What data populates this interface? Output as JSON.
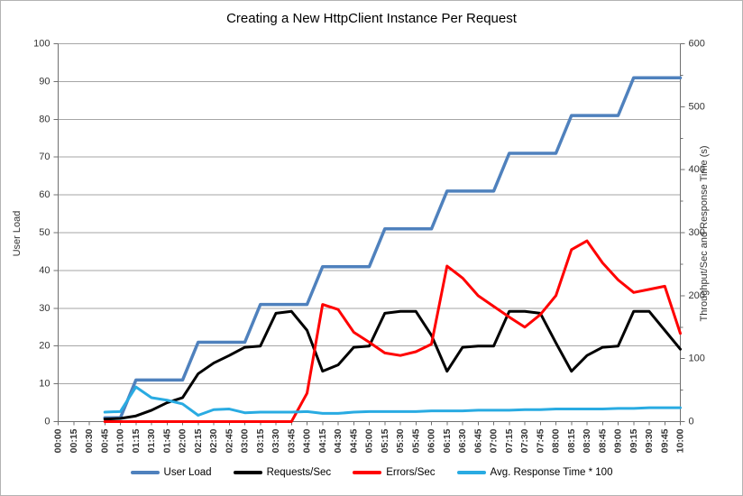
{
  "chart_data": {
    "type": "line",
    "title": "Creating a New HttpClient Instance Per Request",
    "grid": "horizontal",
    "legend_position": "bottom",
    "x_labels": [
      "00:00",
      "00:15",
      "00:30",
      "00:45",
      "01:00",
      "01:15",
      "01:30",
      "01:45",
      "02:00",
      "02:15",
      "02:30",
      "02:45",
      "03:00",
      "03:15",
      "03:30",
      "03:45",
      "04:00",
      "04:15",
      "04:30",
      "04:45",
      "05:00",
      "05:15",
      "05:30",
      "05:45",
      "06:00",
      "06:15",
      "06:30",
      "06:45",
      "07:00",
      "07:15",
      "07:30",
      "07:45",
      "08:00",
      "08:15",
      "08:30",
      "08:45",
      "09:00",
      "09:15",
      "09:30",
      "09:45",
      "10:00"
    ],
    "left_axis": {
      "title": "User Load",
      "min": 0,
      "max": 100,
      "ticks": [
        0,
        10,
        20,
        30,
        40,
        50,
        60,
        70,
        80,
        90,
        100
      ]
    },
    "right_axis": {
      "title": "Throughput/Sec and Response Time (s)",
      "min": 0,
      "max": 600,
      "ticks": [
        0,
        100,
        200,
        300,
        400,
        500,
        600
      ],
      "minor_tick_step": 50
    },
    "series": [
      {
        "name": "User Load",
        "axis": "left",
        "color": "#4F81BD",
        "values": [
          null,
          null,
          null,
          1,
          1,
          11,
          11,
          11,
          11,
          21,
          21,
          21,
          21,
          31,
          31,
          31,
          31,
          41,
          41,
          41,
          41,
          51,
          51,
          51,
          51,
          61,
          61,
          61,
          61,
          71,
          71,
          71,
          71,
          81,
          81,
          81,
          81,
          91,
          91,
          91,
          91
        ]
      },
      {
        "name": "Requests/Sec",
        "axis": "right",
        "color": "#000000",
        "values": [
          null,
          null,
          null,
          4,
          5,
          9,
          18,
          30,
          38,
          76,
          93,
          105,
          118,
          120,
          172,
          175,
          145,
          80,
          90,
          118,
          120,
          172,
          175,
          175,
          137,
          80,
          118,
          120,
          120,
          175,
          175,
          172,
          125,
          80,
          105,
          118,
          120,
          175,
          175,
          145,
          115
        ]
      },
      {
        "name": "Errors/Sec",
        "axis": "right",
        "color": "#FF0000",
        "values": [
          null,
          null,
          null,
          0,
          0,
          0,
          0,
          0,
          0,
          0,
          0,
          0,
          0,
          0,
          0,
          0,
          45,
          186,
          178,
          142,
          126,
          109,
          105,
          111,
          123,
          247,
          228,
          200,
          183,
          166,
          150,
          170,
          200,
          273,
          287,
          252,
          225,
          205,
          210,
          215,
          140
        ]
      },
      {
        "name": "Avg. Response Time * 100",
        "axis": "right",
        "color": "#29ABE2",
        "values": [
          null,
          null,
          null,
          15,
          16,
          55,
          38,
          34,
          28,
          10,
          19,
          20,
          14,
          15,
          15,
          15,
          16,
          13,
          13,
          15,
          16,
          16,
          16,
          16,
          17,
          17,
          17,
          18,
          18,
          18,
          19,
          19,
          20,
          20,
          20,
          20,
          21,
          21,
          22,
          22,
          22
        ]
      }
    ]
  },
  "colors": {
    "gridline": "#A6A6A6",
    "axis": "#707070",
    "text": "#333333",
    "frame_border": "#B3B3B3",
    "background": "#FFFFFF"
  }
}
